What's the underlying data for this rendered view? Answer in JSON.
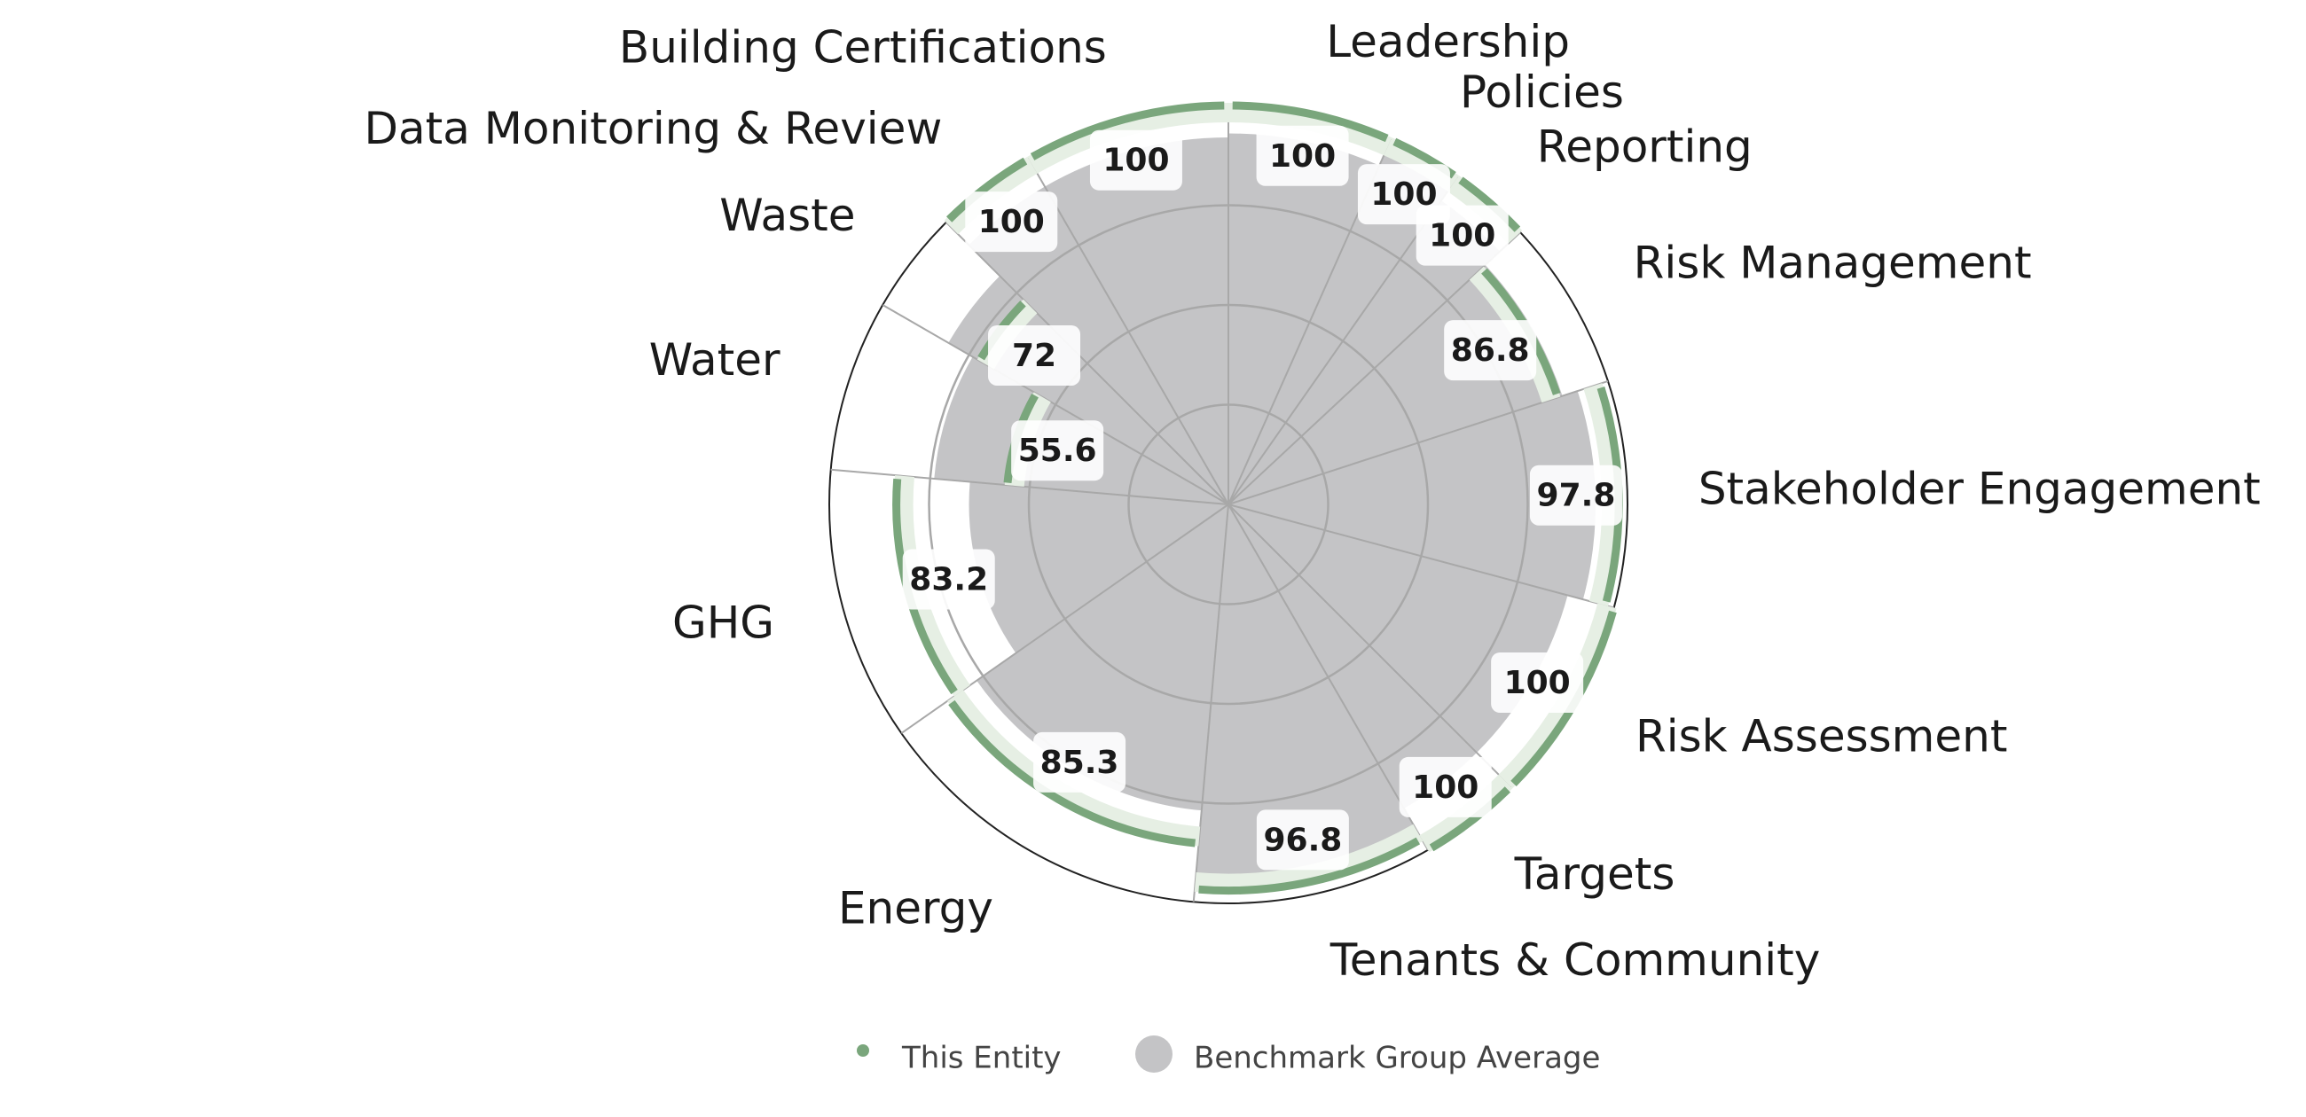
{
  "chart_data": {
    "type": "polar-area",
    "categories": [
      "Leadership",
      "Policies",
      "Reporting",
      "Risk Management",
      "Stakeholder Engagement",
      "Risk Assessment",
      "Targets",
      "Tenants & Community",
      "Energy",
      "GHG",
      "Water",
      "Waste",
      "Data Monitoring & Review",
      "Building Certifications"
    ],
    "weights": [
      24,
      11,
      12,
      25,
      33,
      30,
      15,
      35,
      50,
      40,
      25,
      15,
      15,
      30
    ],
    "series": [
      {
        "name": "This Entity",
        "color": "#7aa67c",
        "values": [
          100,
          100,
          100,
          86.8,
          97.8,
          100,
          100,
          96.8,
          85.3,
          83.2,
          55.6,
          72,
          100,
          100
        ]
      },
      {
        "name": "Benchmark Group Average",
        "color": "#c4c4c6",
        "values": [
          93,
          96,
          93,
          88,
          92,
          88,
          88,
          93,
          77,
          65,
          74,
          81,
          92,
          92
        ]
      }
    ],
    "rlim": [
      0,
      100
    ],
    "rticks": [
      25,
      50,
      75,
      100
    ],
    "grid": true
  }
}
